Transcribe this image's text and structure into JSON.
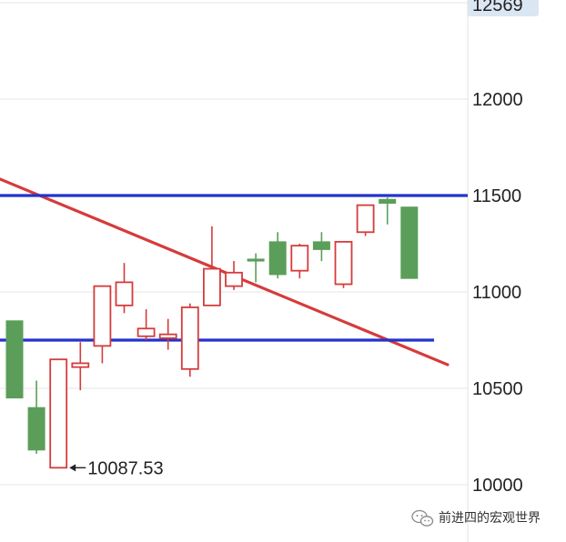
{
  "chart_data": {
    "type": "candlestick",
    "y_axis": {
      "ticks": [
        10000,
        10500,
        11000,
        11500,
        12000
      ],
      "current_price_label": "12569",
      "range": [
        9960,
        12600
      ],
      "position": "right"
    },
    "grid": true,
    "colors": {
      "up": "#d63b3b",
      "down": "#5a9e5a",
      "trend_line": "#d63b3b",
      "level_line": "#2233cc",
      "grid": "#e6e6e6",
      "price_label_bg": "#dbe6f3"
    },
    "candles": [
      {
        "dir": "down",
        "open": 10850,
        "high": 10850,
        "low": 10450,
        "close": 10450
      },
      {
        "dir": "down",
        "open": 10400,
        "high": 10540,
        "low": 10160,
        "close": 10180
      },
      {
        "dir": "up",
        "open": 10088,
        "high": 10650,
        "low": 10088,
        "close": 10650
      },
      {
        "dir": "up",
        "open": 10610,
        "high": 10740,
        "low": 10490,
        "close": 10630
      },
      {
        "dir": "up",
        "open": 10720,
        "high": 11030,
        "low": 10630,
        "close": 11030
      },
      {
        "dir": "up",
        "open": 10930,
        "high": 11150,
        "low": 10890,
        "close": 11050
      },
      {
        "dir": "up",
        "open": 10770,
        "high": 10910,
        "low": 10750,
        "close": 10810
      },
      {
        "dir": "up",
        "open": 10760,
        "high": 10860,
        "low": 10700,
        "close": 10780
      },
      {
        "dir": "up",
        "open": 10600,
        "high": 10940,
        "low": 10560,
        "close": 10920
      },
      {
        "dir": "up",
        "open": 10930,
        "high": 11340,
        "low": 10930,
        "close": 11120
      },
      {
        "dir": "up",
        "open": 11030,
        "high": 11160,
        "low": 11010,
        "close": 11100
      },
      {
        "dir": "down",
        "open": 11170,
        "high": 11200,
        "low": 11050,
        "close": 11160
      },
      {
        "dir": "down",
        "open": 11260,
        "high": 11310,
        "low": 11070,
        "close": 11090
      },
      {
        "dir": "up",
        "open": 11110,
        "high": 11250,
        "low": 11070,
        "close": 11240
      },
      {
        "dir": "down",
        "open": 11260,
        "high": 11310,
        "low": 11160,
        "close": 11220
      },
      {
        "dir": "up",
        "open": 11040,
        "high": 11260,
        "low": 11020,
        "close": 11260
      },
      {
        "dir": "up",
        "open": 11310,
        "high": 11450,
        "low": 11290,
        "close": 11450
      },
      {
        "dir": "down",
        "open": 11480,
        "high": 11490,
        "low": 11350,
        "close": 11460
      },
      {
        "dir": "down",
        "open": 11440,
        "high": 11440,
        "low": 11070,
        "close": 11070
      }
    ],
    "horizontal_lines": [
      {
        "name": "upper-level",
        "value": 11500
      },
      {
        "name": "lower-level",
        "value": 10750
      }
    ],
    "trend_line": {
      "start_candle": -1.4,
      "start_value": 11620,
      "end_candle": 19.8,
      "end_value": 10620
    },
    "annotations": [
      {
        "label": "10087.53",
        "value": 10088,
        "candle_index": 2
      }
    ]
  },
  "watermark": {
    "text": "前进四的宏观世界",
    "icon": "wechat-icon"
  }
}
